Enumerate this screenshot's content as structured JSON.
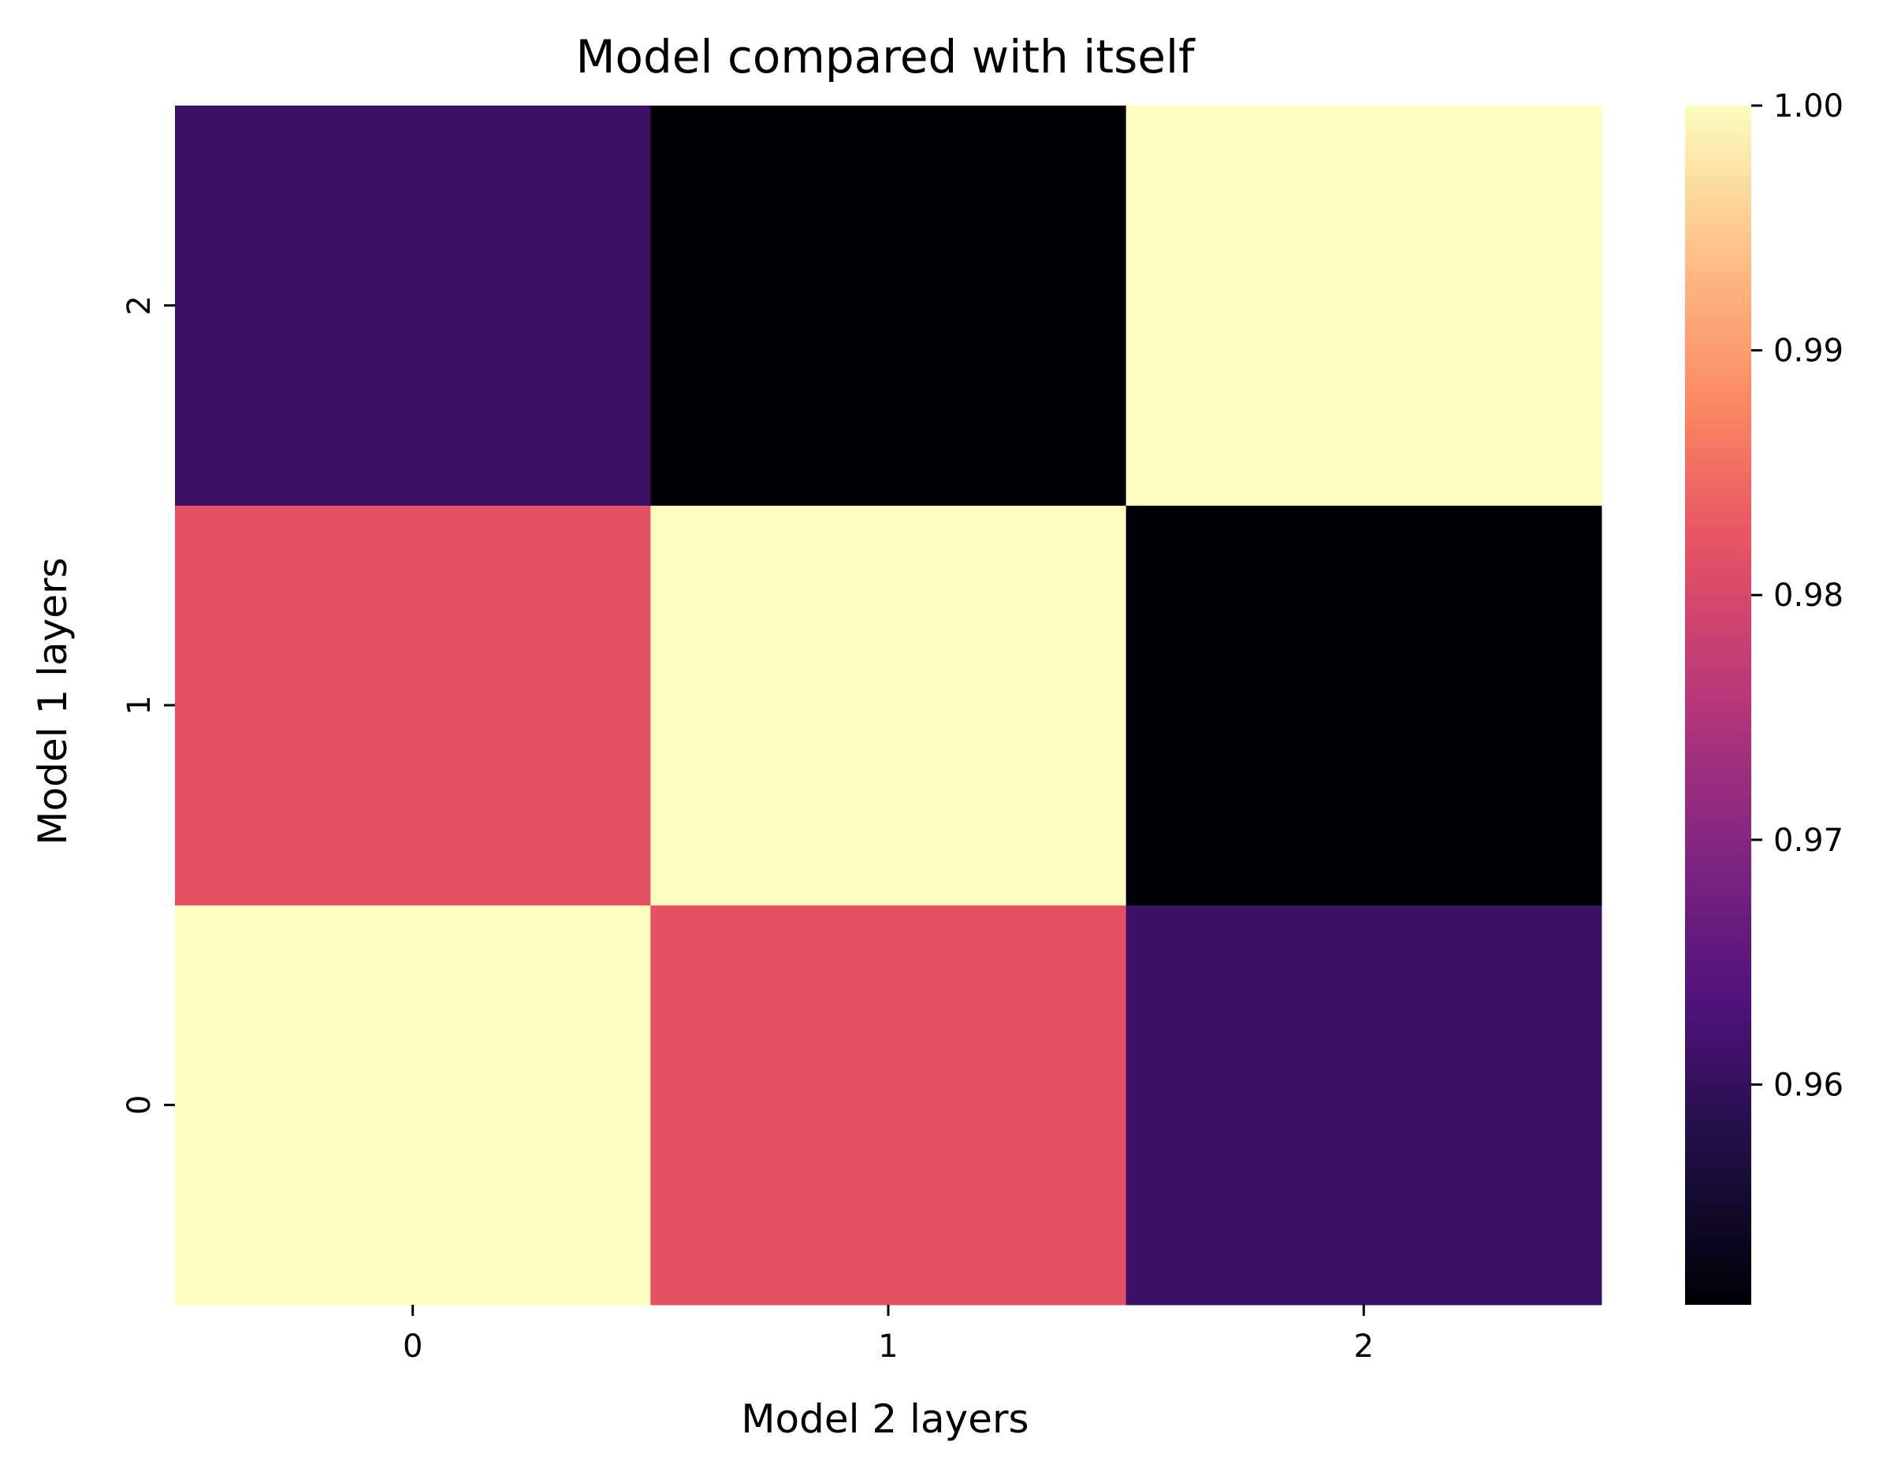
{
  "chart_data": {
    "type": "heatmap",
    "title": "Model compared with itself",
    "xlabel": "Model 2 layers",
    "ylabel": "Model 1 layers",
    "x_categories": [
      "0",
      "1",
      "2"
    ],
    "y_categories": [
      "0",
      "1",
      "2"
    ],
    "y_order": "bottom-to-top",
    "values": [
      [
        1.0,
        0.982,
        0.961
      ],
      [
        0.982,
        1.0,
        0.951
      ],
      [
        0.961,
        0.951,
        1.0
      ]
    ],
    "colormap": "magma",
    "colorbar": {
      "min": 0.951,
      "max": 1.0,
      "ticks": [
        0.96,
        0.97,
        0.98,
        0.99,
        1.0
      ],
      "tick_labels": [
        "0.96",
        "0.97",
        "0.98",
        "0.99",
        "1.00"
      ]
    },
    "grid": false,
    "legend": "colorbar-right"
  }
}
